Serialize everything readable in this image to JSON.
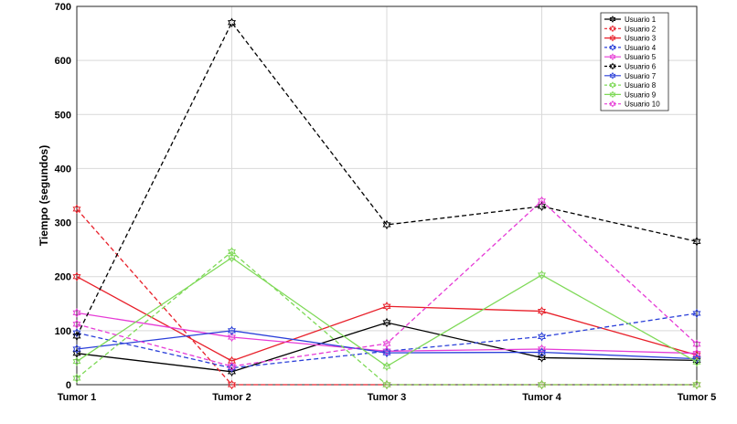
{
  "chart_data": {
    "type": "line",
    "title": "",
    "xlabel": "",
    "ylabel": "Tiempo (segundos)",
    "categories": [
      "Tumor 1",
      "Tumor 2",
      "Tumor 3",
      "Tumor 4",
      "Tumor 5"
    ],
    "ylim": [
      0,
      700
    ],
    "yticks": [
      0,
      100,
      200,
      300,
      400,
      500,
      600,
      700
    ],
    "grid": true,
    "legend_position": "top-right",
    "series": [
      {
        "name": "Usuario 1",
        "color": "#000000",
        "dashed": false,
        "marker": "hexagram",
        "values": [
          58,
          24,
          115,
          50,
          45
        ]
      },
      {
        "name": "Usuario 2",
        "color": "#e8202a",
        "dashed": true,
        "marker": "hexagram",
        "values": [
          325,
          0,
          0,
          0,
          0
        ]
      },
      {
        "name": "Usuario 3",
        "color": "#e8202a",
        "dashed": false,
        "marker": "hexagram",
        "values": [
          200,
          44,
          145,
          136,
          55
        ]
      },
      {
        "name": "Usuario 4",
        "color": "#2a3fd9",
        "dashed": true,
        "marker": "hexagram",
        "values": [
          96,
          31,
          62,
          89,
          132
        ]
      },
      {
        "name": "Usuario 5",
        "color": "#e63bd6",
        "dashed": false,
        "marker": "hexagram",
        "values": [
          133,
          88,
          62,
          66,
          58
        ]
      },
      {
        "name": "Usuario 6",
        "color": "#000000",
        "dashed": true,
        "marker": "hexagram",
        "values": [
          90,
          670,
          296,
          330,
          265
        ]
      },
      {
        "name": "Usuario 7",
        "color": "#2a3fd9",
        "dashed": false,
        "marker": "hexagram",
        "values": [
          66,
          100,
          59,
          60,
          48
        ]
      },
      {
        "name": "Usuario 8",
        "color": "#7ed957",
        "dashed": true,
        "marker": "hexagram",
        "values": [
          12,
          246,
          0,
          0,
          0
        ]
      },
      {
        "name": "Usuario 9",
        "color": "#7ed957",
        "dashed": false,
        "marker": "hexagram",
        "values": [
          43,
          235,
          34,
          203,
          42
        ]
      },
      {
        "name": "Usuario 10",
        "color": "#e63bd6",
        "dashed": true,
        "marker": "hexagram",
        "values": [
          112,
          34,
          76,
          340,
          75
        ]
      }
    ]
  }
}
